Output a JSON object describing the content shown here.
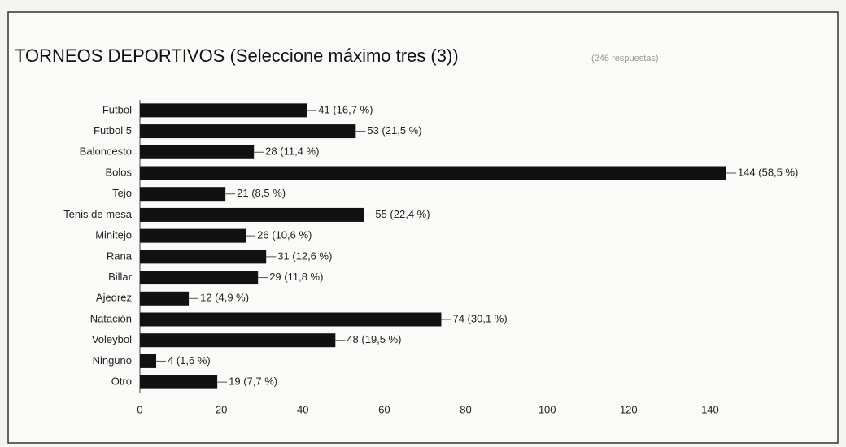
{
  "chart_data": {
    "type": "bar",
    "orientation": "horizontal",
    "title": "TORNEOS DEPORTIVOS (Seleccione máximo tres (3))",
    "subtitle": "(246 respuestas)",
    "categories": [
      "Futbol",
      "Futbol 5",
      "Baloncesto",
      "Bolos",
      "Tejo",
      "Tenis de mesa",
      "Minitejo",
      "Rana",
      "Billar",
      "Ajedrez",
      "Natación",
      "Voleybol",
      "Ninguno",
      "Otro"
    ],
    "values": [
      41,
      53,
      28,
      144,
      21,
      55,
      26,
      31,
      29,
      12,
      74,
      48,
      4,
      19
    ],
    "value_labels": [
      "41 (16,7 %)",
      "53 (21,5 %)",
      "28 (11,4 %)",
      "144 (58,5 %)",
      "21 (8,5 %)",
      "55 (22,4 %)",
      "26 (10,6 %)",
      "31 (12,6 %)",
      "29 (11,8 %)",
      "12 (4,9 %)",
      "74 (30,1 %)",
      "48 (19,5 %)",
      "4 (1,6 %)",
      "19 (7,7 %)"
    ],
    "color": "#111111",
    "xlim": [
      0,
      150
    ],
    "xticks": [
      0,
      20,
      40,
      60,
      80,
      100,
      120,
      140
    ],
    "grid": false
  }
}
